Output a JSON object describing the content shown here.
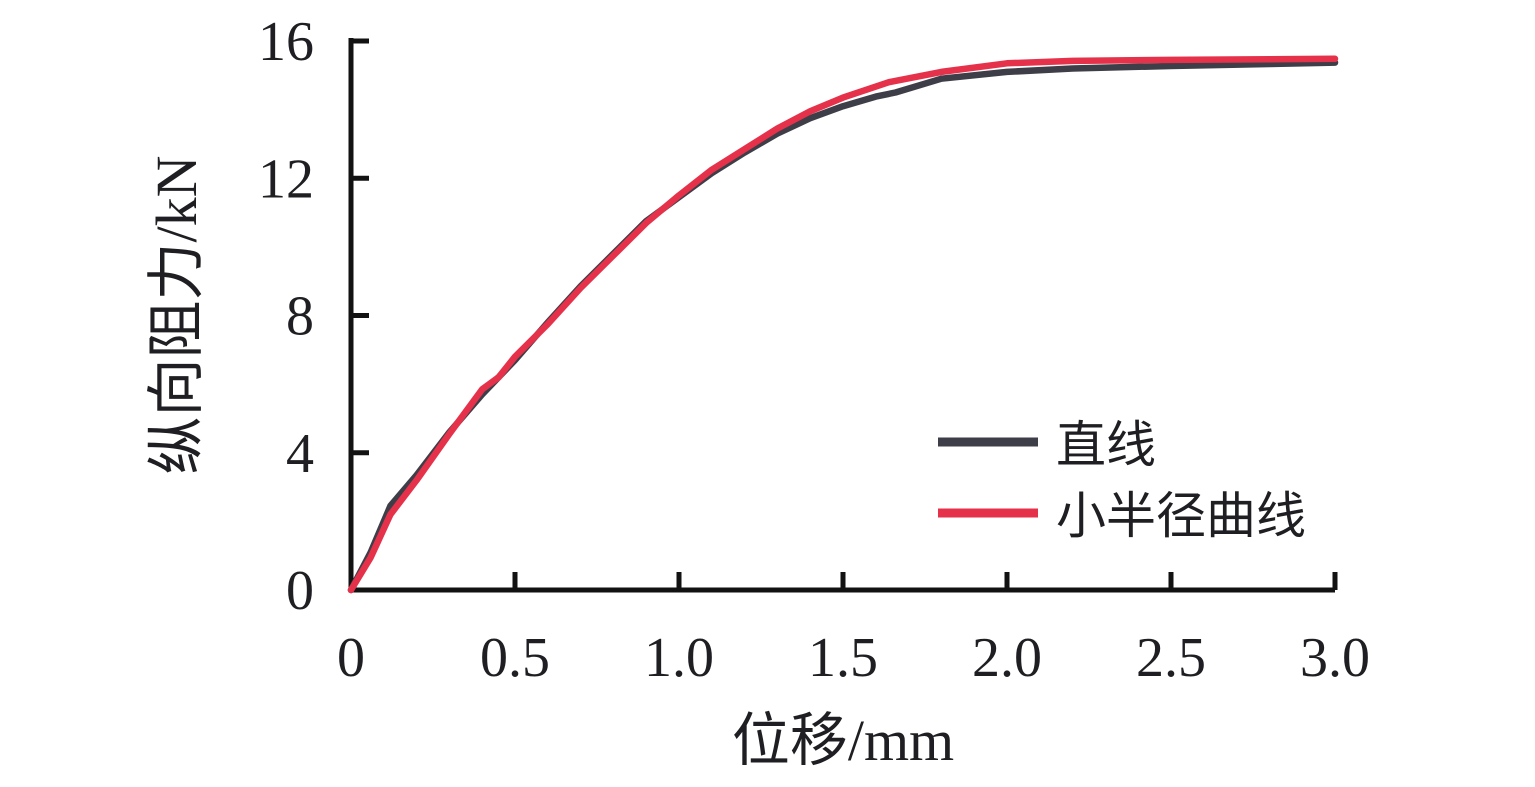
{
  "figure": {
    "background": "#ffffff",
    "text_color": "#1f1f23",
    "axis_color": "#121212"
  },
  "chart_data": {
    "type": "line",
    "title": "",
    "xlabel": "位移/mm",
    "ylabel": "纵向阻力/kN",
    "xlim": [
      0,
      3.0
    ],
    "ylim": [
      0,
      16
    ],
    "x_ticks": [
      0,
      0.5,
      1.0,
      1.5,
      2.0,
      2.5,
      3.0
    ],
    "x_tick_labels": [
      "0",
      "0.5",
      "1.0",
      "1.5",
      "2.0",
      "2.5",
      "3.0"
    ],
    "y_ticks": [
      0,
      4,
      8,
      12,
      16
    ],
    "y_tick_labels": [
      "0",
      "4",
      "8",
      "12",
      "16"
    ],
    "grid": false,
    "legend_position": "inside right, lower half",
    "series": [
      {
        "name": "直线",
        "color": "#3E3E48",
        "x": [
          0,
          0.06,
          0.12,
          0.2,
          0.3,
          0.4,
          0.5,
          0.6,
          0.7,
          0.8,
          0.9,
          1.0,
          1.1,
          1.2,
          1.3,
          1.4,
          1.5,
          1.6,
          1.66,
          1.8,
          2.0,
          2.2,
          2.5,
          2.8,
          3.0
        ],
        "y": [
          0,
          1.1,
          2.45,
          3.35,
          4.6,
          5.7,
          6.7,
          7.8,
          8.85,
          9.8,
          10.75,
          11.45,
          12.15,
          12.75,
          13.3,
          13.75,
          14.1,
          14.38,
          14.5,
          14.9,
          15.1,
          15.2,
          15.27,
          15.33,
          15.37
        ]
      },
      {
        "name": "小半径曲线",
        "color": "#E6314A",
        "x": [
          0,
          0.06,
          0.12,
          0.2,
          0.3,
          0.4,
          0.45,
          0.5,
          0.6,
          0.7,
          0.8,
          0.9,
          1.0,
          1.1,
          1.2,
          1.3,
          1.4,
          1.5,
          1.64,
          1.8,
          2.0,
          2.2,
          2.5,
          2.8,
          3.0
        ],
        "y": [
          0,
          0.95,
          2.2,
          3.2,
          4.55,
          5.85,
          6.2,
          6.8,
          7.75,
          8.8,
          9.75,
          10.7,
          11.5,
          12.25,
          12.85,
          13.45,
          13.95,
          14.35,
          14.8,
          15.1,
          15.35,
          15.42,
          15.45,
          15.47,
          15.48
        ]
      }
    ]
  }
}
